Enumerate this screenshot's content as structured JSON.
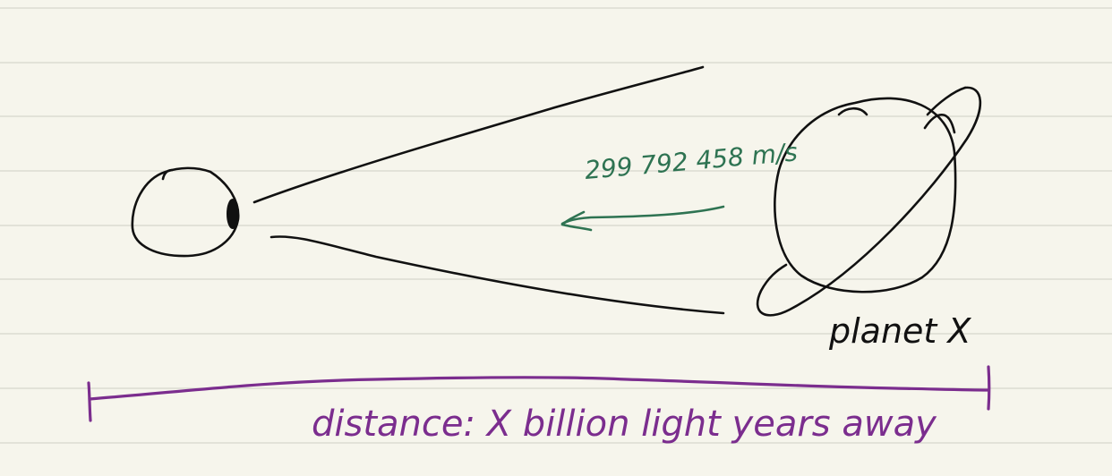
{
  "labels": {
    "speed": "299 792 458 m/s",
    "planet": "planet X",
    "distance": "distance: X billion light years away"
  },
  "colors": {
    "paper": "#f6f5ec",
    "ruled_line": "#dcdcd2",
    "ink_black": "#111111",
    "ink_green": "#2e7352",
    "ink_purple": "#7b2d8e"
  },
  "icons": {
    "eye": "eye-icon",
    "planet": "ringed-planet-icon",
    "arrow": "arrow-left-icon"
  }
}
